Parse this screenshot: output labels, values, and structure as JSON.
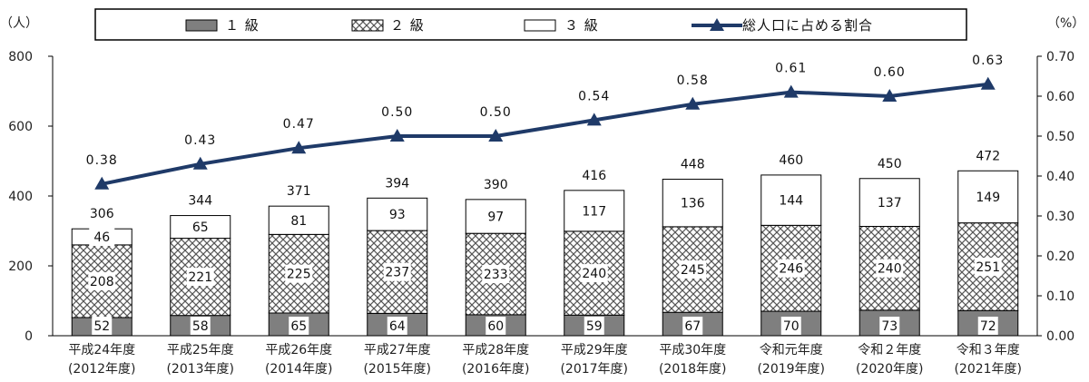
{
  "chart_data": {
    "type": "bar",
    "stacked": true,
    "categories": [
      [
        "平成24年度",
        "(2012年度)"
      ],
      [
        "平成25年度",
        "(2013年度)"
      ],
      [
        "平成26年度",
        "(2014年度)"
      ],
      [
        "平成27年度",
        "(2015年度)"
      ],
      [
        "平成28年度",
        "(2016年度)"
      ],
      [
        "平成29年度",
        "(2017年度)"
      ],
      [
        "平成30年度",
        "(2018年度)"
      ],
      [
        "令和元年度",
        "(2019年度)"
      ],
      [
        "令和２年度",
        "(2020年度)"
      ],
      [
        "令和３年度",
        "(2021年度)"
      ]
    ],
    "series": [
      {
        "name": "１ 級",
        "values": [
          52,
          58,
          65,
          64,
          60,
          59,
          67,
          70,
          73,
          72
        ],
        "color": "#7f7f7f",
        "pattern": "solid"
      },
      {
        "name": "２ 級",
        "values": [
          208,
          221,
          225,
          237,
          233,
          240,
          245,
          246,
          240,
          251
        ],
        "color": "#ffffff",
        "pattern": "crosshatch"
      },
      {
        "name": "３ 級",
        "values": [
          46,
          65,
          81,
          93,
          97,
          117,
          136,
          144,
          137,
          149
        ],
        "color": "#ffffff",
        "pattern": "none"
      }
    ],
    "totals": [
      306,
      344,
      371,
      394,
      390,
      416,
      448,
      460,
      450,
      472
    ],
    "line": {
      "name": "総人口に占める割合",
      "values": [
        0.38,
        0.43,
        0.47,
        0.5,
        0.5,
        0.54,
        0.58,
        0.61,
        0.6,
        0.63
      ],
      "labels": [
        "0.38",
        "0.43",
        "0.47",
        "0.50",
        "0.50",
        "0.54",
        "0.58",
        "0.61",
        "0.60",
        "0.63"
      ],
      "color": "#1f3a68",
      "axis": "right"
    },
    "y_left": {
      "unit": "（人）",
      "ticks": [
        "0",
        "200",
        "400",
        "600",
        "800"
      ],
      "range": [
        0,
        800
      ]
    },
    "y_right": {
      "unit": "（%）",
      "ticks": [
        "0.00",
        "0.10",
        "0.20",
        "0.30",
        "0.40",
        "0.50",
        "0.60",
        "0.70"
      ],
      "range": [
        0,
        0.7
      ]
    },
    "legend_position": "top",
    "grid": false
  }
}
